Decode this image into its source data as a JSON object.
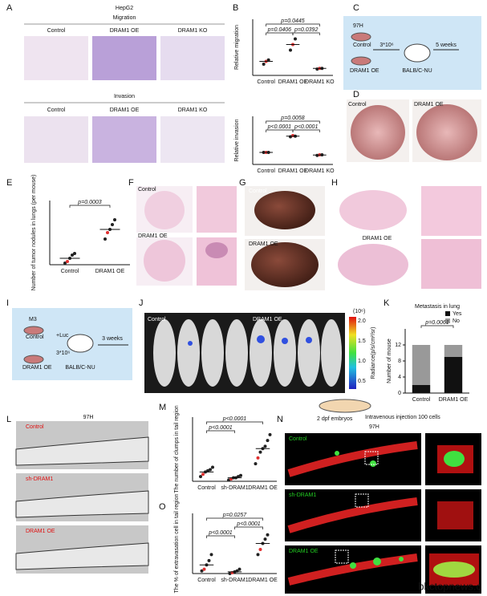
{
  "panels": {
    "A": {
      "label": "A",
      "title": "HepG2",
      "migration": "Migration",
      "invasion": "Invasion",
      "control": "Control",
      "oe": "DRAM1 OE",
      "ko": "DRAM1 KO"
    },
    "B": {
      "label": "B"
    },
    "C": {
      "label": "C",
      "cell": "97H",
      "control": "Control",
      "oe": "DRAM1 OE",
      "cells": "3*10⁶",
      "time": "5 weeks",
      "mouse": "BALB/C-NU"
    },
    "D": {
      "label": "D",
      "control": "Control",
      "oe": "DRAM1 OE"
    },
    "E": {
      "label": "E"
    },
    "F": {
      "label": "F",
      "control": "Control",
      "oe": "DRAM1 OE"
    },
    "G": {
      "label": "G",
      "control": "Control",
      "oe": "DRAM1 OE"
    },
    "H": {
      "label": "H",
      "oe": "DRAM1 OE"
    },
    "I": {
      "label": "I",
      "cell": "M3",
      "control": "Control",
      "oe": "DRAM1 OE",
      "luc": "+Luc",
      "cells": "3*10⁶",
      "time": "3 weeks",
      "mouse": "BALB/C-NU"
    },
    "J": {
      "label": "J",
      "control": "Control",
      "oe": "DRAM1 OE",
      "scale_unit": "(10⁶)",
      "scale_ticks": [
        "2.0",
        "1.5",
        "1.0",
        "0.5"
      ],
      "scale_title": "Radiance(p/s/cm²/sr)"
    },
    "K": {
      "label": "K"
    },
    "L": {
      "label": "L",
      "cell": "97H",
      "control": "Control",
      "sh": "sh-DRAM1",
      "oe": "DRAM1 OE"
    },
    "M": {
      "label": "M"
    },
    "N": {
      "label": "N",
      "embryo": "2 dpf embryos",
      "injection": "Intravenous injection 100 cells",
      "cell": "97H",
      "control": "Control",
      "sh": "sh-DRAM1",
      "oe": "DRAM1 OE"
    },
    "O": {
      "label": "O"
    },
    "watermark": "bkctopnews.c"
  },
  "chart_data": [
    {
      "type": "dot",
      "y_label": "Relative migration",
      "categories": [
        "Control",
        "DRAM1 OE",
        "DRAM1 KO"
      ],
      "points": [
        [
          0.8,
          1.0,
          1.1
        ],
        [
          1.8,
          2.2,
          2.6
        ],
        [
          0.45,
          0.5,
          0.5
        ]
      ],
      "means": [
        1.0,
        2.2,
        0.5
      ],
      "ylim": [
        0,
        4
      ],
      "color": "#222",
      "annotations": [
        "p=0.0445",
        "p=0.0406",
        "p=0.0392"
      ]
    },
    {
      "type": "dot",
      "y_label": "Relative invasion",
      "categories": [
        "Control",
        "DRAM1 OE",
        "DRAM1 KO"
      ],
      "points": [
        [
          1.0,
          1.0,
          1.0
        ],
        [
          2.3,
          2.4,
          2.35
        ],
        [
          0.75,
          0.8,
          0.8
        ]
      ],
      "means": [
        1.0,
        2.35,
        0.78
      ],
      "ylim": [
        0,
        4
      ],
      "color": "#222",
      "annotations": [
        "p=0.0058",
        "p<0.0001",
        "p<0.0001"
      ]
    },
    {
      "type": "dot",
      "y_label": "Number of tumor nodules in lungs (per mouse)",
      "categories": [
        "Control",
        "DRAM1 OE"
      ],
      "points": [
        [
          1,
          2,
          4,
          6,
          7
        ],
        [
          16,
          20,
          22,
          25,
          28
        ]
      ],
      "means": [
        4,
        22
      ],
      "ylim": [
        0,
        40
      ],
      "color": "#222",
      "annotations": [
        "p=0.0003"
      ]
    },
    {
      "type": "bar",
      "title": "Metastasis in lung",
      "y_label": "Number of mouse",
      "categories": [
        "Control",
        "DRAM1 OE"
      ],
      "series": [
        {
          "name": "Yes",
          "color": "#111111",
          "values": [
            2,
            9
          ]
        },
        {
          "name": "No",
          "color": "#999999",
          "values": [
            10,
            3
          ]
        }
      ],
      "ylim": [
        0,
        16
      ],
      "yticks": [
        0,
        4,
        8,
        12
      ],
      "annotations": [
        "p=0.0061"
      ]
    },
    {
      "type": "dot",
      "y_label": "The number of clumps in tail region",
      "categories": [
        "Control",
        "sh-DRAM1",
        "DRAM1 OE"
      ],
      "points": [
        [
          4,
          6,
          8,
          9,
          10,
          12
        ],
        [
          1,
          2,
          3,
          3,
          4,
          5
        ],
        [
          15,
          20,
          25,
          28,
          30,
          35,
          40
        ]
      ],
      "means": [
        8,
        3,
        28
      ],
      "ylim": [
        0,
        55
      ],
      "color": "#222",
      "annotations": [
        "p<0.0001",
        "p<0.0001"
      ]
    },
    {
      "type": "dot",
      "y_label": "The % of extravasation cell in tail region",
      "categories": [
        "Control",
        "sh-DRAM1",
        "DRAM1 OE"
      ],
      "points": [
        [
          3,
          5,
          10,
          15,
          22
        ],
        [
          0,
          1,
          2,
          3,
          5
        ],
        [
          22,
          28,
          35,
          40,
          45
        ]
      ],
      "means": [
        10,
        2,
        35
      ],
      "ylim": [
        0,
        70
      ],
      "color": "#222",
      "annotations": [
        "p=0.0257",
        "p<0.0001",
        "p<0.0001"
      ]
    }
  ]
}
